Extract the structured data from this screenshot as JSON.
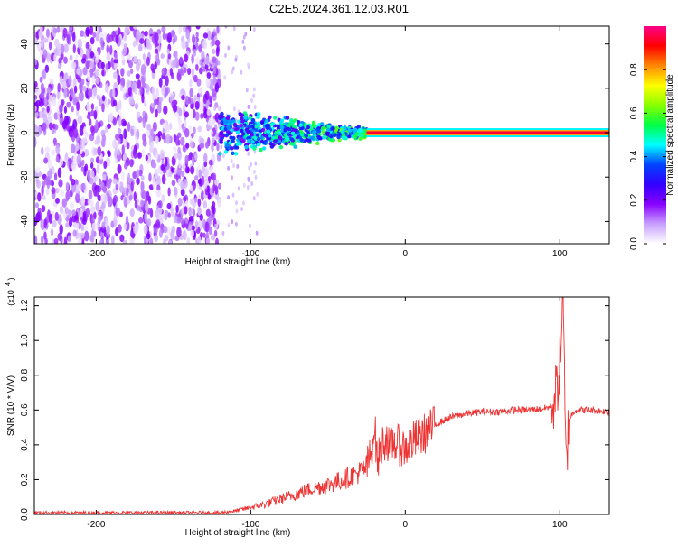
{
  "title": "C2E5.2024.361.12.03.R01",
  "chart_data": [
    {
      "type": "heatmap",
      "xlabel": "Height of straight line (km)",
      "ylabel": "Frequency (Hz)",
      "xlim": [
        -240,
        132
      ],
      "ylim": [
        -50,
        48
      ],
      "xticks": [
        -200,
        -100,
        0,
        100
      ],
      "yticks": [
        -40,
        -20,
        0,
        20,
        40
      ],
      "colorbar": {
        "label": "Normalized spectral amplitude",
        "range": [
          0,
          1
        ],
        "ticks": [
          "0.0",
          "0.2",
          "0.4",
          "0.6",
          "0.8"
        ],
        "tick_values": [
          0,
          0.2,
          0.4,
          0.6,
          0.8
        ],
        "colors": [
          "#ffffff",
          "#c8a0ff",
          "#8800ff",
          "#3300ff",
          "#0044ff",
          "#00ffff",
          "#00ff44",
          "#88ff00",
          "#ffff00",
          "#ff8800",
          "#ff0000",
          "#ff0088"
        ]
      },
      "regions": [
        {
          "name": "noise",
          "x_range": [
            -240,
            -120
          ],
          "freq_range": [
            -50,
            48
          ],
          "amplitude_range": [
            0.02,
            0.2
          ]
        },
        {
          "name": "onset",
          "x_range": [
            -120,
            -25
          ],
          "freq_range": [
            -12,
            12
          ],
          "amplitude_range": [
            0.15,
            0.5
          ]
        },
        {
          "name": "stable_line",
          "x_range": [
            -25,
            132
          ],
          "freq": 0,
          "amplitude": 0.95
        }
      ]
    },
    {
      "type": "line",
      "xlabel": "Height of straight line (km)",
      "ylabel": "SNR (10 * V/V)",
      "y_multiplier": "(x10",
      "y_multiplier_exp": "4",
      "xlim": [
        -240,
        132
      ],
      "ylim": [
        0,
        1.25
      ],
      "xticks": [
        -200,
        -100,
        0,
        100
      ],
      "yticks": [
        0.0,
        0.2,
        0.4,
        0.6,
        0.8,
        1.0,
        1.2
      ],
      "color": "#ee3333",
      "series": [
        {
          "x": [
            -240,
            -200,
            -150,
            -120,
            -110,
            -100,
            -90,
            -80,
            -70,
            -60,
            -50,
            -40,
            -30,
            -25,
            -22,
            -20,
            -18,
            -15,
            -12,
            -10,
            -8,
            -5,
            0,
            5,
            10,
            15,
            20,
            25,
            30,
            40,
            50,
            60,
            70,
            80,
            90,
            95,
            98,
            100,
            102,
            104,
            106,
            110,
            120,
            132
          ],
          "y": [
            0.01,
            0.01,
            0.01,
            0.01,
            0.02,
            0.04,
            0.06,
            0.09,
            0.12,
            0.15,
            0.17,
            0.2,
            0.24,
            0.27,
            0.35,
            0.52,
            0.3,
            0.4,
            0.45,
            0.36,
            0.42,
            0.4,
            0.38,
            0.42,
            0.45,
            0.48,
            0.52,
            0.54,
            0.56,
            0.58,
            0.59,
            0.59,
            0.6,
            0.6,
            0.61,
            0.62,
            0.72,
            0.85,
            1.25,
            0.28,
            0.55,
            0.6,
            0.6,
            0.59
          ]
        }
      ]
    }
  ]
}
